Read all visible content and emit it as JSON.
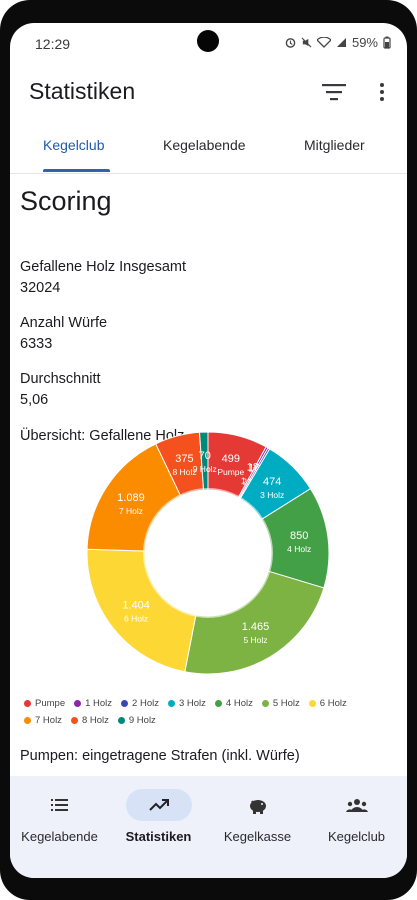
{
  "status": {
    "time": "12:29",
    "battery": "59%"
  },
  "appbar": {
    "title": "Statistiken"
  },
  "tabs": [
    {
      "label": "Kegelclub",
      "active": true
    },
    {
      "label": "Kegelabende",
      "active": false
    },
    {
      "label": "Mitglieder",
      "active": false
    }
  ],
  "content": {
    "heading": "Scoring",
    "stats": [
      {
        "label": "Gefallene Holz Insgesamt",
        "value": "32024"
      },
      {
        "label": "Anzahl Würfe",
        "value": "6333"
      },
      {
        "label": "Durchschnitt",
        "value": "5,06"
      }
    ],
    "chart_title": "Übersicht: Gefallene Holz",
    "next_section": "Pumpen: eingetragene Strafen (inkl. Würfe)"
  },
  "chart_data": {
    "type": "pie",
    "title": "Übersicht: Gefallene Holz",
    "donut": true,
    "categories": [
      "Pumpe",
      "1 Holz",
      "2 Holz",
      "3 Holz",
      "4 Holz",
      "5 Holz",
      "6 Holz",
      "7 Holz",
      "8 Holz",
      "9 Holz"
    ],
    "values": [
      499,
      18,
      16,
      474,
      850,
      1465,
      1404,
      1089,
      375,
      70
    ],
    "value_labels": [
      "499",
      "18",
      "16",
      "474",
      "850",
      "1.465",
      "1.404",
      "1.089",
      "375",
      "70"
    ],
    "colors": [
      "#e53935",
      "#8e24aa",
      "#3949ab",
      "#00acc1",
      "#43a047",
      "#7cb342",
      "#fdd835",
      "#fb8c00",
      "#f4511e",
      "#00897b"
    ],
    "legend_position": "bottom"
  },
  "nav": [
    {
      "label": "Kegelabende",
      "icon": "list-icon",
      "active": false
    },
    {
      "label": "Statistiken",
      "icon": "trending-up-icon",
      "active": true
    },
    {
      "label": "Kegelkasse",
      "icon": "piggy-bank-icon",
      "active": false
    },
    {
      "label": "Kegelclub",
      "icon": "group-icon",
      "active": false
    }
  ]
}
